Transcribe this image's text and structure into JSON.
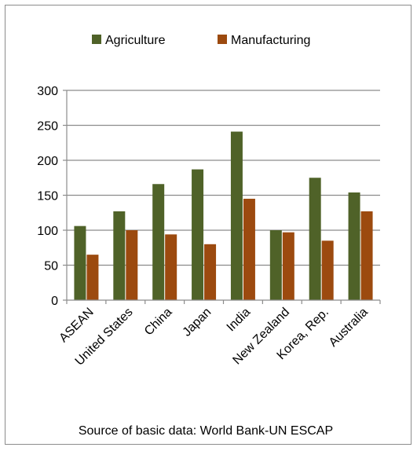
{
  "chart_data": {
    "type": "bar",
    "title": "",
    "xlabel": "",
    "ylabel": "",
    "ylim": [
      0,
      300
    ],
    "yticks": [
      0,
      50,
      100,
      150,
      200,
      250,
      300
    ],
    "ytick_labels": [
      "0",
      "50",
      "100",
      "150",
      "200",
      "250",
      "300"
    ],
    "grid": true,
    "legend_position": "top",
    "categories": [
      "ASEAN",
      "United States",
      "China",
      "Japan",
      "India",
      "New Zealand",
      "Korea, Rep.",
      "Australia"
    ],
    "series": [
      {
        "name": "Agriculture",
        "color": "#4f6228",
        "values": [
          106,
          127,
          166,
          187,
          241,
          100,
          175,
          154
        ]
      },
      {
        "name": "Manufacturing",
        "color": "#9c4a0f",
        "values": [
          65,
          100,
          94,
          80,
          145,
          97,
          85,
          127
        ]
      }
    ],
    "source": "Source of basic data: World Bank-UN ESCAP"
  }
}
